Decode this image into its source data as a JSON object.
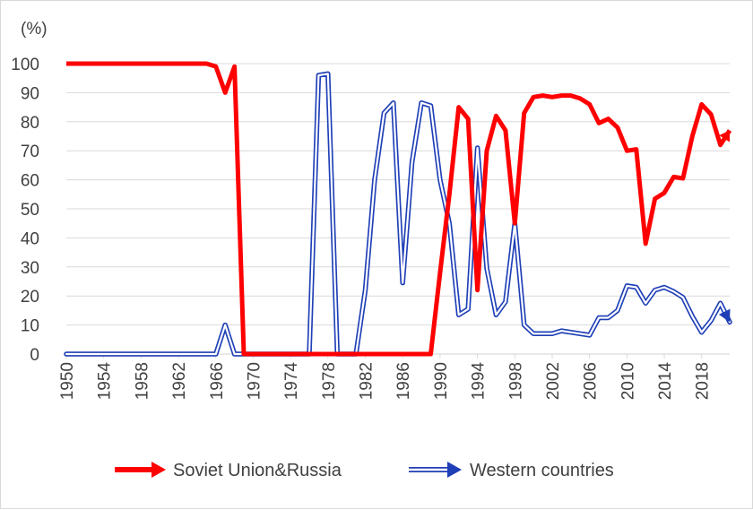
{
  "chart_data": {
    "type": "line",
    "title": "",
    "xlabel": "",
    "ylabel": "(%)",
    "ylim": [
      0,
      100
    ],
    "yticks": [
      "0",
      "10",
      "20",
      "30",
      "40",
      "50",
      "60",
      "70",
      "80",
      "90",
      "100"
    ],
    "xlim": [
      1950,
      2021
    ],
    "xticks": [
      "1950",
      "1954",
      "1958",
      "1962",
      "1966",
      "1970",
      "1974",
      "1978",
      "1982",
      "1986",
      "1990",
      "1994",
      "1998",
      "2002",
      "2006",
      "2010",
      "2014",
      "2018"
    ],
    "grid": true,
    "legend": "bottom",
    "series": [
      {
        "name": "Soviet Union&Russia",
        "color": "#ff0000",
        "style": "thick-solid",
        "x": [
          1950,
          1951,
          1952,
          1953,
          1954,
          1955,
          1956,
          1957,
          1958,
          1959,
          1960,
          1961,
          1962,
          1963,
          1964,
          1965,
          1966,
          1967,
          1968,
          1969,
          1970,
          1971,
          1972,
          1973,
          1974,
          1975,
          1976,
          1977,
          1978,
          1979,
          1980,
          1981,
          1982,
          1983,
          1984,
          1985,
          1986,
          1987,
          1988,
          1989,
          1990,
          1991,
          1992,
          1993,
          1994,
          1995,
          1996,
          1997,
          1998,
          1999,
          2000,
          2001,
          2002,
          2003,
          2004,
          2005,
          2006,
          2007,
          2008,
          2009,
          2010,
          2011,
          2012,
          2013,
          2014,
          2015,
          2016,
          2017,
          2018,
          2019,
          2020,
          2021
        ],
        "values": [
          100,
          100,
          100,
          100,
          100,
          100,
          100,
          100,
          100,
          100,
          100,
          100,
          100,
          100,
          100,
          100,
          99,
          90,
          99,
          0,
          0,
          0,
          0,
          0,
          0,
          0,
          0,
          0,
          0,
          0,
          0,
          0,
          0,
          0,
          0,
          0,
          0,
          0,
          0,
          0,
          28,
          55,
          85,
          81,
          22,
          70,
          82,
          77,
          45,
          83,
          88.5,
          89,
          88.5,
          89,
          89,
          88,
          86,
          79.5,
          81,
          78,
          70,
          70.5,
          38,
          53.5,
          55.5,
          61,
          60.5,
          75,
          86,
          82.5,
          72,
          77
        ]
      },
      {
        "name": "Western countries",
        "color": "#1f3fb6",
        "style": "double-line",
        "x": [
          1950,
          1951,
          1952,
          1953,
          1954,
          1955,
          1956,
          1957,
          1958,
          1959,
          1960,
          1961,
          1962,
          1963,
          1964,
          1965,
          1966,
          1967,
          1968,
          1969,
          1970,
          1971,
          1972,
          1973,
          1974,
          1975,
          1976,
          1977,
          1978,
          1979,
          1980,
          1981,
          1982,
          1983,
          1984,
          1985,
          1986,
          1987,
          1988,
          1989,
          1990,
          1991,
          1992,
          1993,
          1994,
          1995,
          1996,
          1997,
          1998,
          1999,
          2000,
          2001,
          2002,
          2003,
          2004,
          2005,
          2006,
          2007,
          2008,
          2009,
          2010,
          2011,
          2012,
          2013,
          2014,
          2015,
          2016,
          2017,
          2018,
          2019,
          2020,
          2021
        ],
        "values": [
          0,
          0,
          0,
          0,
          0,
          0,
          0,
          0,
          0,
          0,
          0,
          0,
          0,
          0,
          0,
          0,
          0,
          10,
          0,
          0,
          0,
          0,
          0,
          0,
          0,
          0,
          0,
          96,
          96.5,
          0,
          0,
          0,
          22,
          60,
          83,
          86.5,
          24.5,
          66,
          86.5,
          85.5,
          60,
          45,
          13.5,
          15.5,
          71,
          29.5,
          13.5,
          18,
          45,
          10,
          7,
          7,
          7,
          8,
          7.5,
          7,
          6.5,
          12.5,
          12.5,
          15,
          23.5,
          23,
          17.5,
          22,
          23,
          21.5,
          19.5,
          13,
          7.5,
          11.5,
          17.5,
          11
        ]
      }
    ]
  }
}
